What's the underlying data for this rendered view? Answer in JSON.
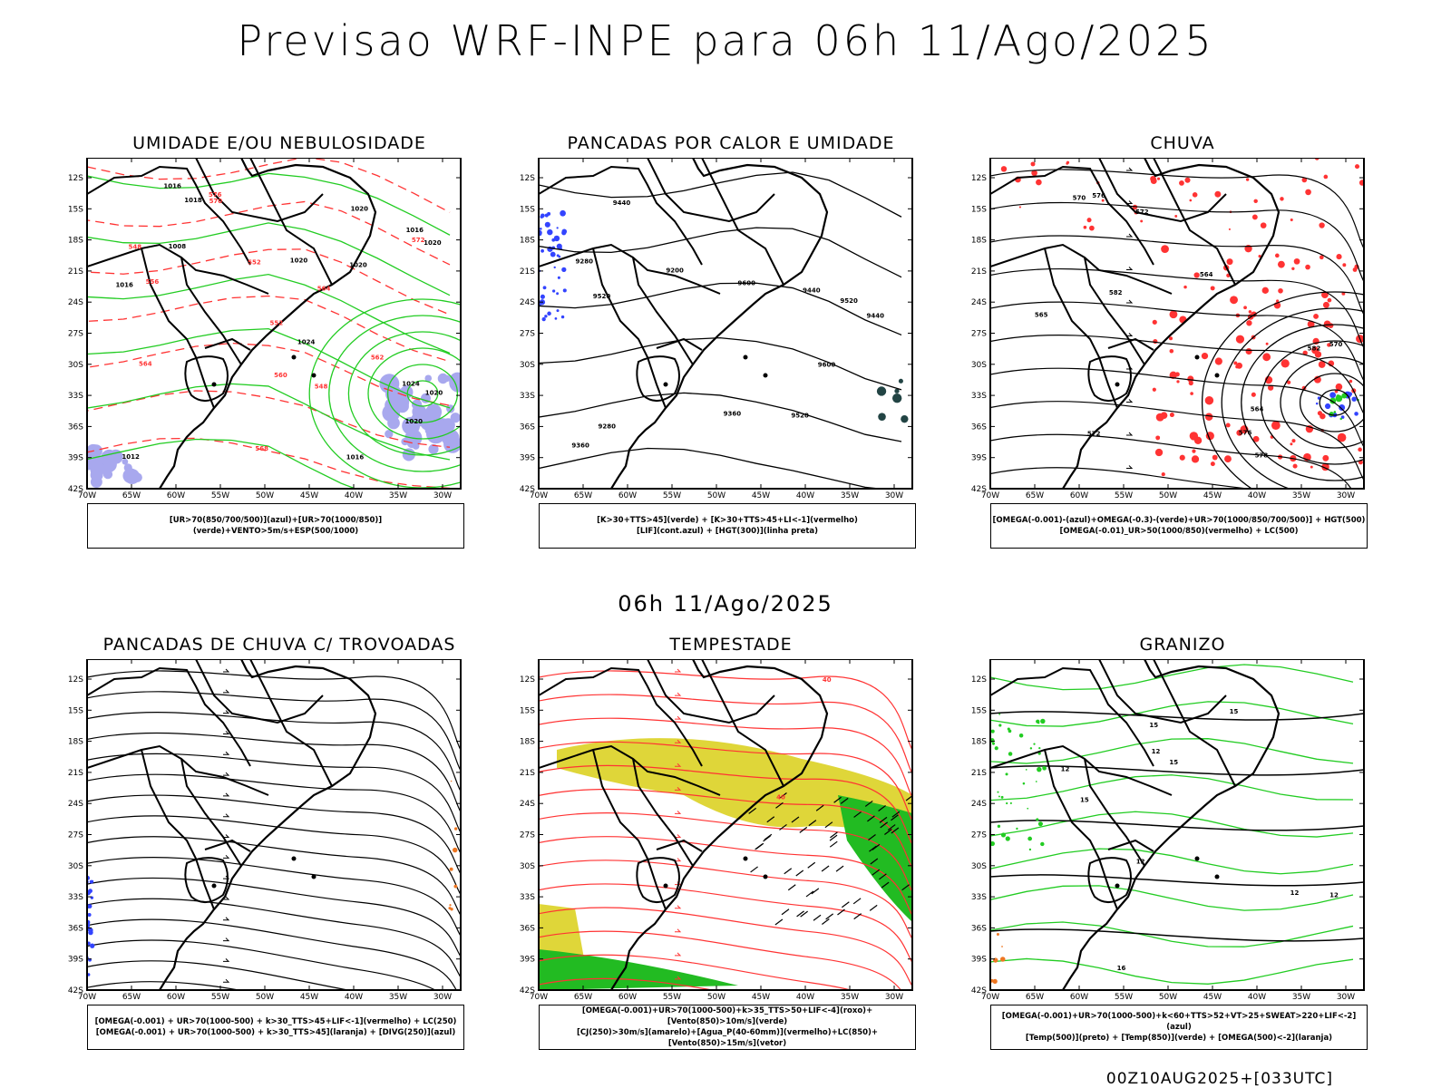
{
  "main_title": "Previsao WRF-INPE  para 06h 11/Ago/2025",
  "sub_title": "06h 11/Ago/2025",
  "footer": "00Z10AUG2025+[033UTC]",
  "lat_labels": [
    "12S",
    "15S",
    "18S",
    "21S",
    "24S",
    "27S",
    "30S",
    "33S",
    "36S",
    "39S",
    "42S"
  ],
  "lon_labels": [
    "70W",
    "65W",
    "60W",
    "55W",
    "50W",
    "45W",
    "40W",
    "35W",
    "30W"
  ],
  "panels": [
    {
      "title": "UMIDADE E/OU NEBULOSIDADE",
      "legend": [
        "[UR>70(850/700/500)](azul)+[UR>70(1000/850)](verde)+VENTO>5m/s+ESP(500/1000)"
      ],
      "contour_labels": [
        "1016",
        "1016",
        "1018",
        "1020",
        "1020",
        "1024",
        "1024",
        "1020",
        "1016",
        "1012",
        "1008",
        "1020",
        "1020",
        "1016",
        "1020"
      ],
      "red_labels": [
        "570",
        "572",
        "576",
        "564",
        "556",
        "552",
        "552",
        "548",
        "568",
        "564",
        "562",
        "560",
        "548"
      ]
    },
    {
      "title": "PANCADAS POR CALOR E UMIDADE",
      "legend": [
        "[K>30+TTS>45](verde) + [K>30+TTS>45+LI<-1](vermelho)",
        "[LIF](cont.azul) + [HGT(300)](linha preta)"
      ],
      "contour_labels": [
        "9600",
        "9600",
        "9520",
        "9520",
        "9520",
        "9440",
        "9440",
        "9440",
        "9360",
        "9360",
        "9280",
        "9280",
        "9200"
      ]
    },
    {
      "title": "CHUVA",
      "legend": [
        "[OMEGA(-0.001)-(azul)+OMEGA(-0.3)-(verde)+UR>70(1000/850/700/500)] + HGT(500)",
        "[OMEGA(-0.01)_UR>50(1000/850)(vermelho) + LC(500)"
      ],
      "contour_labels": [
        "582",
        "582",
        "578",
        "576",
        "572",
        "570",
        "576",
        "572",
        "570",
        "564",
        "565",
        "564"
      ]
    },
    {
      "title": "PANCADAS DE CHUVA C/ TROVOADAS",
      "legend": [
        "[OMEGA(-0.001) + UR>70(1000-500) + k>30_TTS>45+LIF<-1](vermelho) + LC(250)",
        "[OMEGA(-0.001) + UR>70(1000-500) + k>30_TTS>45](laranja) + [DIVG(250)](azul)"
      ]
    },
    {
      "title": "TEMPESTADE",
      "legend": [
        "[OMEGA(-0.001)+UR>70(1000-500)+k>35_TTS>50+LIF<-4](roxo)+[Vento(850)>10m/s](verde)",
        "[CJ(250)>30m/s](amarelo)+[Agua_P(40-60mm)](vermelho)+LC(850)+[Vento(850)>15m/s](vetor)"
      ],
      "contour_labels": [
        "40",
        "40"
      ]
    },
    {
      "title": "GRANIZO",
      "legend": [
        "[OMEGA(-0.001)+UR>70(1000-500)+k<60+TTS>52+VT>25+SWEAT>220+LIF<-2](azul)",
        "[Temp(500)](preto) + [Temp(850)](verde) + [OMEGA(500)<-2](laranja)"
      ],
      "contour_labels": [
        "12",
        "12",
        "12",
        "12",
        "15",
        "16",
        "15",
        "15",
        "15",
        "12"
      ]
    }
  ],
  "colors": {
    "black": "#000000",
    "green": "#22cc22",
    "red": "#ff3333",
    "blue": "#3344ff",
    "lavender": "#a8a8ee",
    "yellow": "#dcd224",
    "orange": "#ee7722",
    "teal": "#224444"
  }
}
